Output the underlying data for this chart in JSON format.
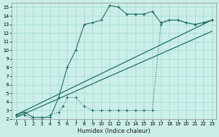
{
  "bg_color": "#cceee8",
  "grid_color": "#99d9d0",
  "line_color": "#1a6b60",
  "xlabel": "Humidex (Indice chaleur)",
  "xlim": [
    -0.5,
    23.5
  ],
  "ylim": [
    2,
    15.5
  ],
  "xticks": [
    0,
    1,
    2,
    3,
    4,
    5,
    6,
    7,
    8,
    9,
    10,
    11,
    12,
    13,
    14,
    15,
    16,
    17,
    18,
    19,
    20,
    21,
    22,
    23
  ],
  "yticks": [
    2,
    3,
    4,
    5,
    6,
    7,
    8,
    9,
    10,
    11,
    12,
    13,
    14,
    15
  ],
  "series1_x": [
    0,
    1,
    2,
    3,
    4,
    5,
    6,
    7,
    8,
    9,
    10,
    11,
    12,
    13,
    14,
    15,
    16,
    17,
    18,
    19,
    20,
    21,
    22,
    23
  ],
  "series1_y": [
    2.5,
    2.8,
    2.2,
    2.2,
    2.2,
    4.5,
    8.0,
    10.0,
    13.0,
    13.2,
    13.5,
    15.2,
    15.0,
    14.2,
    14.2,
    14.2,
    14.5,
    13.2,
    13.5,
    13.5,
    13.2,
    13.0,
    13.2,
    13.5
  ],
  "series2_x": [
    0,
    1,
    2,
    3,
    4,
    5,
    5.5,
    6,
    7,
    8,
    9,
    10,
    11,
    12,
    13,
    14,
    15,
    16,
    17,
    18,
    19,
    20,
    21,
    22,
    23
  ],
  "series2_y": [
    2.5,
    2.5,
    2.0,
    2.0,
    2.5,
    2.8,
    3.5,
    4.5,
    4.5,
    3.5,
    3.0,
    3.0,
    3.0,
    3.0,
    3.0,
    3.0,
    3.0,
    3.0,
    13.0,
    13.5,
    13.5,
    13.2,
    13.0,
    13.2,
    13.5
  ],
  "trend1_x": [
    0,
    23
  ],
  "trend1_y": [
    2.5,
    13.5
  ],
  "trend2_x": [
    0,
    23
  ],
  "trend2_y": [
    2.2,
    12.2
  ]
}
